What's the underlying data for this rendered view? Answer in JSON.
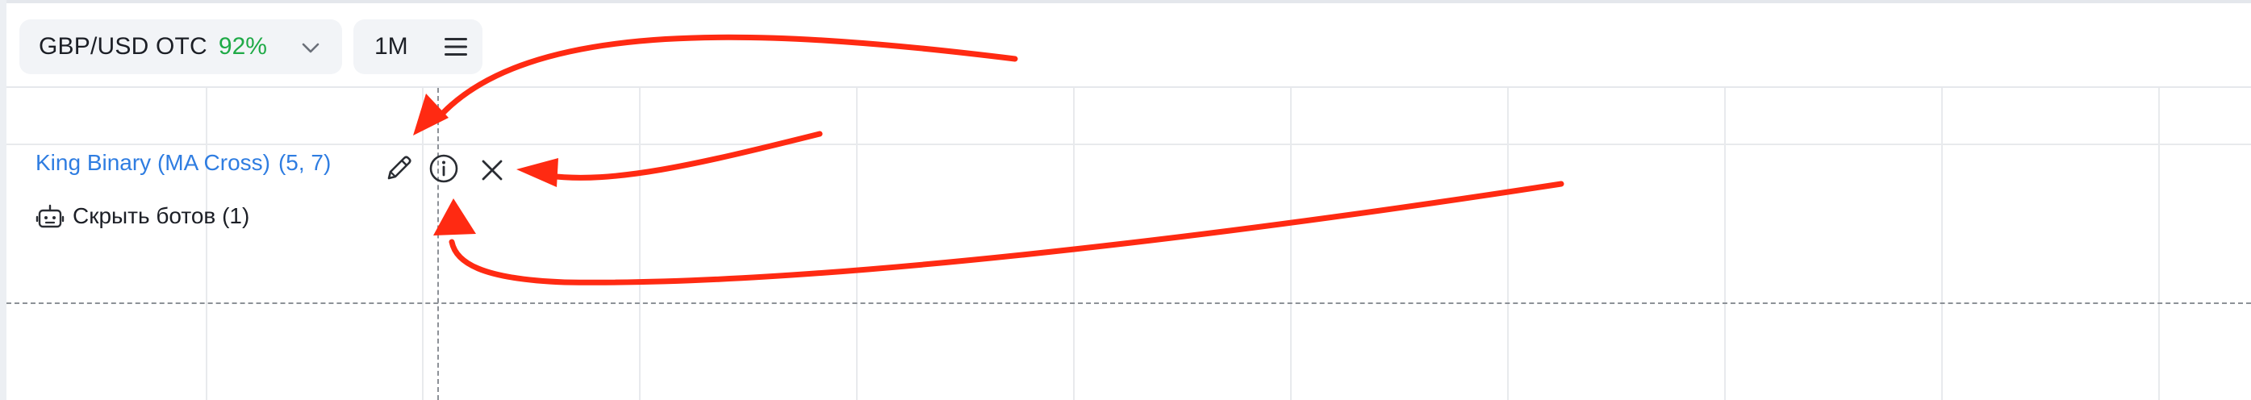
{
  "toolbar": {
    "asset": {
      "name": "GBP/USD OTC",
      "payout": "92%"
    },
    "timeframe": {
      "label": "1M"
    }
  },
  "indicator": {
    "title": "King Binary (MA Cross)",
    "params": "(5, 7)",
    "actions": [
      "pencil-icon",
      "info-icon",
      "close-icon"
    ]
  },
  "bots": {
    "label": "Скрыть ботов (1)"
  },
  "colors": {
    "accent_blue": "#2f7de1",
    "payout_green": "#1faa47",
    "annotation_red": "#ff2a12"
  }
}
